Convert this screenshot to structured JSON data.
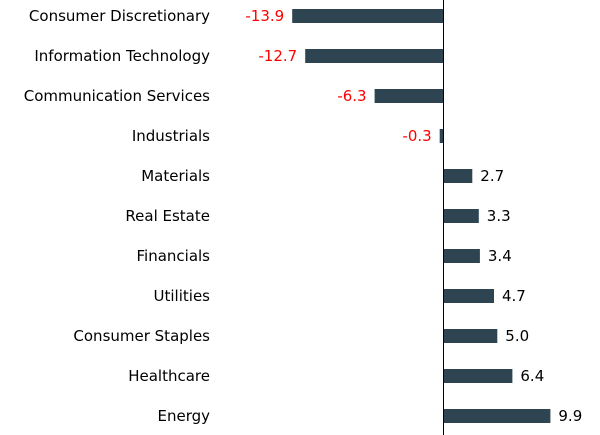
{
  "chart_data": {
    "type": "bar",
    "orientation": "horizontal",
    "title": "",
    "xlabel": "",
    "ylabel": "",
    "categories": [
      "Consumer Discretionary",
      "Information Technology",
      "Communication Services",
      "Industrials",
      "Materials",
      "Real Estate",
      "Financials",
      "Utilities",
      "Consumer Staples",
      "Healthcare",
      "Energy"
    ],
    "values": [
      -13.9,
      -12.7,
      -6.3,
      -0.3,
      2.7,
      3.3,
      3.4,
      4.7,
      5.0,
      6.4,
      9.9
    ],
    "value_labels": [
      "-13.9",
      "-12.7",
      "-6.3",
      "-0.3",
      "2.7",
      "3.3",
      "3.4",
      "4.7",
      "5.0",
      "6.4",
      "9.9"
    ],
    "xlim": [
      -13.9,
      9.9
    ],
    "grid": false,
    "legend": "none"
  },
  "colors": {
    "bar": "#2e4450",
    "negative_label": "#ff0000",
    "positive_label": "#000000",
    "axis": "#000000",
    "category_label": "#000000"
  }
}
